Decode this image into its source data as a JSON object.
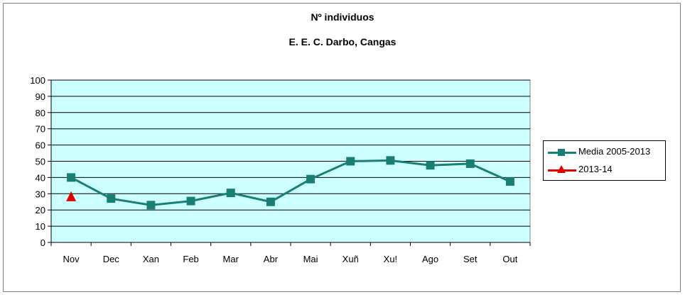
{
  "chart_data": {
    "type": "line",
    "title": "Nº individuos",
    "subtitle": "E. E. C. Darbo, Cangas",
    "categories": [
      "Nov",
      "Dec",
      "Xan",
      "Feb",
      "Mar",
      "Abr",
      "Mai",
      "Xuñ",
      "Xu!",
      "Ago",
      "Set",
      "Out"
    ],
    "ylim": [
      0,
      100
    ],
    "yticks": [
      "0",
      "10",
      "20",
      "30",
      "40",
      "50",
      "60",
      "70",
      "80",
      "90",
      "100"
    ],
    "grid": true,
    "legend_position": "right",
    "plot_background": "#ccffff",
    "series": [
      {
        "name": "Media 2005-2013",
        "color": "#1a7f73",
        "marker": "square",
        "values": [
          40,
          27,
          23,
          25.5,
          30.5,
          25,
          39,
          50,
          50.5,
          47.5,
          48.5,
          37.5
        ]
      },
      {
        "name": "2013-14",
        "color": "#e00000",
        "marker": "triangle",
        "values": [
          28,
          null,
          null,
          null,
          null,
          null,
          null,
          null,
          null,
          null,
          null,
          null
        ]
      }
    ]
  }
}
